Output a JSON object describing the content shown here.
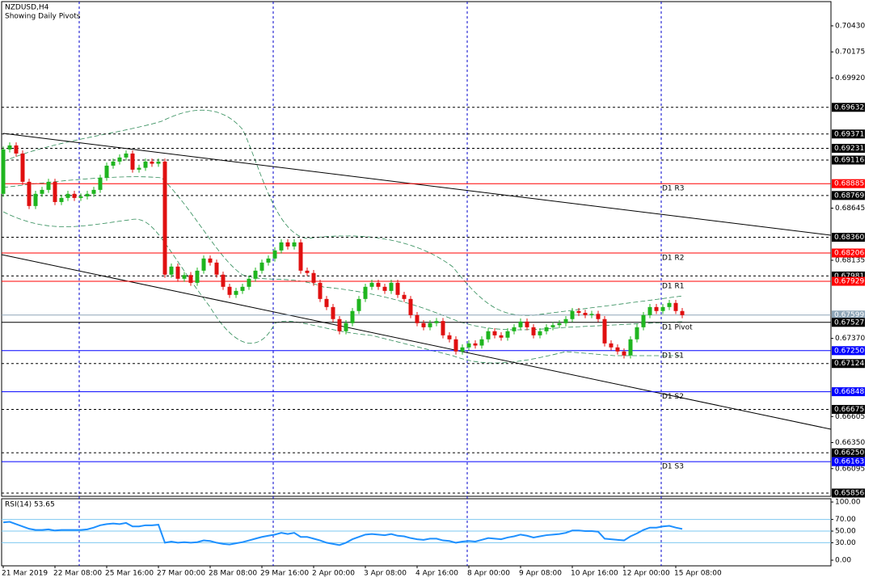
{
  "chart_data": [
    {
      "type": "candlestick",
      "title": "NZDUSD,H4",
      "subtitle": "Showing Daily Pivots",
      "up_color": "#1fb51f",
      "down_color": "#e01010",
      "ylim": [
        0.65824,
        0.70667
      ],
      "yticks": [
        {
          "value": 0.7043,
          "label": "0.70430"
        },
        0.70175,
        {
          "value": 0.6992,
          "label": "0.69920"
        },
        0.68645,
        0.68135,
        {
          "value": 0.6737,
          "label": "0.67370"
        },
        0.66605,
        {
          "value": 0.6635,
          "label": "0.66350"
        },
        0.66095
      ],
      "levels": [
        {
          "value": 0.69632,
          "color": "#000000",
          "style": "dashed"
        },
        {
          "value": 0.69371,
          "color": "#000000",
          "style": "dashed"
        },
        {
          "value": 0.69231,
          "color": "#000000",
          "style": "dashed"
        },
        {
          "value": 0.69116,
          "color": "#000000",
          "style": "dashed"
        },
        {
          "value": 0.68885,
          "name": "D1 R3",
          "color": "#ff0000",
          "style": "solid"
        },
        {
          "value": 0.68769,
          "color": "#000000",
          "style": "dashed"
        },
        {
          "value": 0.6836,
          "label": "0.68360",
          "color": "#000000",
          "style": "dashed"
        },
        {
          "value": 0.68206,
          "name": "D1 R2",
          "color": "#ff0000",
          "style": "solid"
        },
        {
          "value": 0.67981,
          "color": "#000000",
          "style": "dashed"
        },
        {
          "value": 0.67929,
          "name": "D1 R1",
          "color": "#ff0000",
          "style": "solid"
        },
        {
          "value": 0.67599,
          "color": "#8fa6b8",
          "style": "solid"
        },
        {
          "value": 0.67527,
          "name": "D1 Pivot",
          "color": "#000000",
          "style": "solid"
        },
        {
          "value": 0.6725,
          "label": "0.67250",
          "name": "D1 S1",
          "color": "#0000ff",
          "style": "solid"
        },
        {
          "value": 0.67124,
          "color": "#000000",
          "style": "dashed"
        },
        {
          "value": 0.66848,
          "name": "D1 S2",
          "color": "#0000ff",
          "style": "solid"
        },
        {
          "value": 0.66675,
          "color": "#000000",
          "style": "dashed"
        },
        {
          "value": 0.6625,
          "label": "0.66250",
          "color": "#000000",
          "style": "dashed"
        },
        {
          "value": 0.66163,
          "name": "D1 S3",
          "color": "#0000ff",
          "style": "solid"
        },
        {
          "value": 0.65856,
          "color": "#000000",
          "style": "dashed"
        }
      ],
      "categories": [
        "21 Mar 2019",
        null,
        null,
        null,
        null,
        null,
        null,
        null,
        "22 Mar 08:00",
        null,
        null,
        null,
        null,
        null,
        null,
        null,
        "25 Mar 16:00",
        null,
        null,
        null,
        null,
        null,
        null,
        null,
        "27 Mar 00:00",
        null,
        null,
        null,
        null,
        null,
        null,
        null,
        "28 Mar 08:00",
        null,
        null,
        null,
        null,
        null,
        null,
        null,
        "29 Mar 16:00",
        null,
        null,
        null,
        null,
        null,
        null,
        null,
        "2 Apr 00:00",
        null,
        null,
        null,
        null,
        null,
        null,
        null,
        "3 Apr 08:00",
        null,
        null,
        null,
        null,
        null,
        null,
        null,
        "4 Apr 16:00",
        null,
        null,
        null,
        null,
        null,
        null,
        null,
        "8 Apr 00:00",
        null,
        null,
        null,
        null,
        null,
        null,
        null,
        "9 Apr 08:00",
        null,
        null,
        null,
        null,
        null,
        null,
        null,
        "10 Apr 16:00",
        null,
        null,
        null,
        null,
        null,
        null,
        null,
        "12 Apr 00:00",
        null,
        null,
        null,
        null,
        null,
        null,
        null,
        "15 Apr 08:00",
        null
      ],
      "candles": [
        [
          0.68785,
          0.6925,
          0.68755,
          0.6922
        ],
        [
          0.6922,
          0.69289,
          0.6919,
          0.69259
        ],
        [
          0.69259,
          0.69289,
          0.6915,
          0.6918
        ],
        [
          0.6918,
          0.6921,
          0.68873,
          0.68903
        ],
        [
          0.68903,
          0.68933,
          0.68636,
          0.68666
        ],
        [
          0.68666,
          0.68815,
          0.68636,
          0.68785
        ],
        [
          0.68785,
          0.68854,
          0.68755,
          0.68824
        ],
        [
          0.68824,
          0.68933,
          0.68794,
          0.68903
        ],
        [
          0.68903,
          0.68933,
          0.68675,
          0.68705
        ],
        [
          0.68705,
          0.68775,
          0.68675,
          0.68745
        ],
        [
          0.68745,
          0.68815,
          0.68715,
          0.68785
        ],
        [
          0.68785,
          0.68815,
          0.68715,
          0.68745
        ],
        [
          0.68745,
          0.6879,
          0.68715,
          0.6876
        ],
        [
          0.6876,
          0.68815,
          0.6873,
          0.68785
        ],
        [
          0.68785,
          0.68854,
          0.68755,
          0.68824
        ],
        [
          0.68824,
          0.68973,
          0.68794,
          0.68943
        ],
        [
          0.68943,
          0.69091,
          0.68913,
          0.69061
        ],
        [
          0.69061,
          0.69131,
          0.69031,
          0.69101
        ],
        [
          0.69101,
          0.69171,
          0.69071,
          0.69141
        ],
        [
          0.69141,
          0.6921,
          0.69111,
          0.6918
        ],
        [
          0.6918,
          0.6921,
          0.68992,
          0.69022
        ],
        [
          0.69022,
          0.6907,
          0.68992,
          0.6904
        ],
        [
          0.6904,
          0.69131,
          0.6901,
          0.69101
        ],
        [
          0.69101,
          0.69131,
          0.6905,
          0.6908
        ],
        [
          0.6908,
          0.69131,
          0.6905,
          0.69101
        ],
        [
          0.69101,
          0.69131,
          0.67964,
          0.67994
        ],
        [
          0.67994,
          0.68103,
          0.67964,
          0.68073
        ],
        [
          0.68073,
          0.68103,
          0.67924,
          0.67954
        ],
        [
          0.67954,
          0.6802,
          0.67924,
          0.6799
        ],
        [
          0.6799,
          0.6802,
          0.67884,
          0.67914
        ],
        [
          0.67914,
          0.68063,
          0.67884,
          0.68033
        ],
        [
          0.68033,
          0.68182,
          0.68003,
          0.68152
        ],
        [
          0.68152,
          0.68182,
          0.68082,
          0.68112
        ],
        [
          0.68112,
          0.68142,
          0.67964,
          0.67994
        ],
        [
          0.67994,
          0.68024,
          0.67845,
          0.67875
        ],
        [
          0.67875,
          0.67905,
          0.67766,
          0.67796
        ],
        [
          0.67796,
          0.67865,
          0.67766,
          0.67835
        ],
        [
          0.67835,
          0.67905,
          0.67805,
          0.67875
        ],
        [
          0.67875,
          0.67984,
          0.67845,
          0.67954
        ],
        [
          0.67954,
          0.68063,
          0.67924,
          0.68033
        ],
        [
          0.68033,
          0.68142,
          0.68003,
          0.68112
        ],
        [
          0.68112,
          0.68182,
          0.68082,
          0.68152
        ],
        [
          0.68152,
          0.68261,
          0.68122,
          0.68231
        ],
        [
          0.68231,
          0.6834,
          0.68201,
          0.6831
        ],
        [
          0.6831,
          0.6834,
          0.6824,
          0.6827
        ],
        [
          0.6827,
          0.6834,
          0.6824,
          0.6831
        ],
        [
          0.6831,
          0.6834,
          0.68003,
          0.68033
        ],
        [
          0.68033,
          0.68063,
          0.6798,
          0.6801
        ],
        [
          0.6801,
          0.6804,
          0.67884,
          0.67914
        ],
        [
          0.67914,
          0.67944,
          0.67726,
          0.67756
        ],
        [
          0.67756,
          0.67786,
          0.67647,
          0.67677
        ],
        [
          0.67677,
          0.67707,
          0.67529,
          0.67559
        ],
        [
          0.67559,
          0.67589,
          0.6741,
          0.6744
        ],
        [
          0.6744,
          0.67549,
          0.6741,
          0.67519
        ],
        [
          0.67519,
          0.67668,
          0.67489,
          0.67638
        ],
        [
          0.67638,
          0.67786,
          0.67608,
          0.67756
        ],
        [
          0.67756,
          0.67905,
          0.67726,
          0.67875
        ],
        [
          0.67875,
          0.67944,
          0.67845,
          0.67914
        ],
        [
          0.67914,
          0.67944,
          0.67845,
          0.67875
        ],
        [
          0.67875,
          0.67905,
          0.67805,
          0.67835
        ],
        [
          0.67835,
          0.67944,
          0.67805,
          0.67914
        ],
        [
          0.67914,
          0.67944,
          0.67766,
          0.67796
        ],
        [
          0.67796,
          0.67826,
          0.67726,
          0.67756
        ],
        [
          0.67756,
          0.67786,
          0.67568,
          0.67598
        ],
        [
          0.67598,
          0.67628,
          0.67489,
          0.67519
        ],
        [
          0.67519,
          0.67549,
          0.67449,
          0.67479
        ],
        [
          0.67479,
          0.67549,
          0.67449,
          0.67519
        ],
        [
          0.67519,
          0.6757,
          0.67489,
          0.6754
        ],
        [
          0.6754,
          0.6757,
          0.6737,
          0.674
        ],
        [
          0.674,
          0.6743,
          0.67331,
          0.67361
        ],
        [
          0.67361,
          0.67391,
          0.67212,
          0.67242
        ],
        [
          0.67242,
          0.67312,
          0.67212,
          0.67282
        ],
        [
          0.67282,
          0.67351,
          0.67252,
          0.67321
        ],
        [
          0.67321,
          0.67351,
          0.6727,
          0.673
        ],
        [
          0.673,
          0.67391,
          0.6727,
          0.67361
        ],
        [
          0.67361,
          0.6747,
          0.67331,
          0.6744
        ],
        [
          0.6744,
          0.6747,
          0.6737,
          0.674
        ],
        [
          0.674,
          0.6743,
          0.67347,
          0.67377
        ],
        [
          0.67377,
          0.6747,
          0.67347,
          0.6744
        ],
        [
          0.6744,
          0.67509,
          0.6741,
          0.67479
        ],
        [
          0.67479,
          0.67565,
          0.67449,
          0.67535
        ],
        [
          0.67535,
          0.67565,
          0.67449,
          0.67479
        ],
        [
          0.67479,
          0.67509,
          0.6737,
          0.674
        ],
        [
          0.674,
          0.6747,
          0.6737,
          0.6744
        ],
        [
          0.6744,
          0.67509,
          0.6741,
          0.67479
        ],
        [
          0.67479,
          0.6753,
          0.67449,
          0.675
        ],
        [
          0.675,
          0.67549,
          0.6747,
          0.67519
        ],
        [
          0.67519,
          0.67589,
          0.67489,
          0.67559
        ],
        [
          0.67559,
          0.67668,
          0.67529,
          0.67638
        ],
        [
          0.67638,
          0.67668,
          0.6759,
          0.6762
        ],
        [
          0.6762,
          0.6765,
          0.67568,
          0.67598
        ],
        [
          0.67598,
          0.6764,
          0.67568,
          0.6761
        ],
        [
          0.6761,
          0.6764,
          0.67529,
          0.67559
        ],
        [
          0.67559,
          0.67589,
          0.67291,
          0.67321
        ],
        [
          0.67321,
          0.67351,
          0.67252,
          0.67282
        ],
        [
          0.67282,
          0.67312,
          0.67212,
          0.67242
        ],
        [
          0.67242,
          0.67272,
          0.67173,
          0.67203
        ],
        [
          0.67203,
          0.67391,
          0.67173,
          0.67361
        ],
        [
          0.67361,
          0.67509,
          0.67331,
          0.67479
        ],
        [
          0.67479,
          0.67628,
          0.67449,
          0.67598
        ],
        [
          0.67598,
          0.67707,
          0.67568,
          0.67677
        ],
        [
          0.67677,
          0.67707,
          0.67608,
          0.67638
        ],
        [
          0.67638,
          0.67707,
          0.67608,
          0.67677
        ],
        [
          0.67677,
          0.67747,
          0.67647,
          0.67717
        ],
        [
          0.67717,
          0.67747,
          0.67608,
          0.67638
        ],
        [
          0.67638,
          0.67668,
          0.67568,
          0.67598
        ]
      ]
    },
    {
      "type": "line",
      "title": "RSI(14) 53.65",
      "color": "#1e90ff",
      "ylim": [
        -9.7,
        105.6
      ],
      "yticks": [
        {
          "value": 100,
          "label": "100.00"
        },
        {
          "value": 70,
          "label": "70.00"
        },
        {
          "value": 50,
          "label": "50.00"
        },
        {
          "value": 30,
          "label": "30.00"
        },
        {
          "value": 0,
          "label": "0.00"
        }
      ],
      "values": [
        65,
        66,
        62,
        58,
        54,
        52,
        52,
        53,
        51,
        52,
        52,
        52,
        52,
        53,
        56,
        60,
        62,
        63,
        62,
        64,
        58,
        58,
        60,
        60,
        61,
        30,
        32,
        30,
        31,
        30,
        31,
        34,
        33,
        30,
        28,
        27,
        29,
        31,
        34,
        37,
        40,
        42,
        44,
        47,
        45,
        47,
        40,
        40,
        37,
        34,
        30,
        28,
        26,
        30,
        36,
        40,
        44,
        45,
        44,
        43,
        45,
        42,
        41,
        38,
        36,
        35,
        37,
        37,
        34,
        33,
        30,
        32,
        33,
        32,
        35,
        38,
        37,
        36,
        39,
        41,
        44,
        42,
        39,
        41,
        43,
        44,
        45,
        47,
        51,
        51,
        50,
        50,
        49,
        37,
        36,
        35,
        34,
        41,
        46,
        52,
        56,
        56,
        58,
        59,
        56,
        53.65
      ]
    }
  ]
}
